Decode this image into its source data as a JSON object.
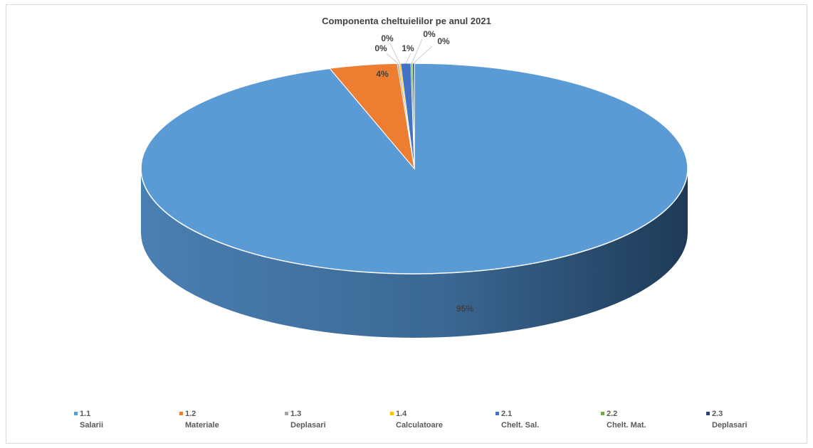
{
  "chart_data": {
    "type": "pie",
    "title": "Componenta cheltuielilor pe anul 2021",
    "legend_position": "bottom",
    "slices": [
      {
        "code": "1.1",
        "label": "Salarii",
        "value": 95,
        "value_label": "95%",
        "color": "#5b9bd5"
      },
      {
        "code": "1.2",
        "label": "Materiale",
        "value": 4,
        "value_label": "4%",
        "color": "#ed7d31"
      },
      {
        "code": "1.3",
        "label": "Deplasari",
        "value": 0.1,
        "value_label": "0%",
        "color": "#a5a5a5"
      },
      {
        "code": "1.4",
        "label": "Calculatoare",
        "value": 0.1,
        "value_label": "0%",
        "color": "#ffc000"
      },
      {
        "code": "2.1",
        "label": "Chelt. Sal.",
        "value": 0.6,
        "value_label": "1%",
        "color": "#4472c4"
      },
      {
        "code": "2.2",
        "label": "Chelt. Mat.",
        "value": 0.1,
        "value_label": "0%",
        "color": "#70ad47"
      },
      {
        "code": "2.3",
        "label": "Deplasari",
        "value": 0.1,
        "value_label": "0%",
        "color": "#264478"
      }
    ]
  }
}
